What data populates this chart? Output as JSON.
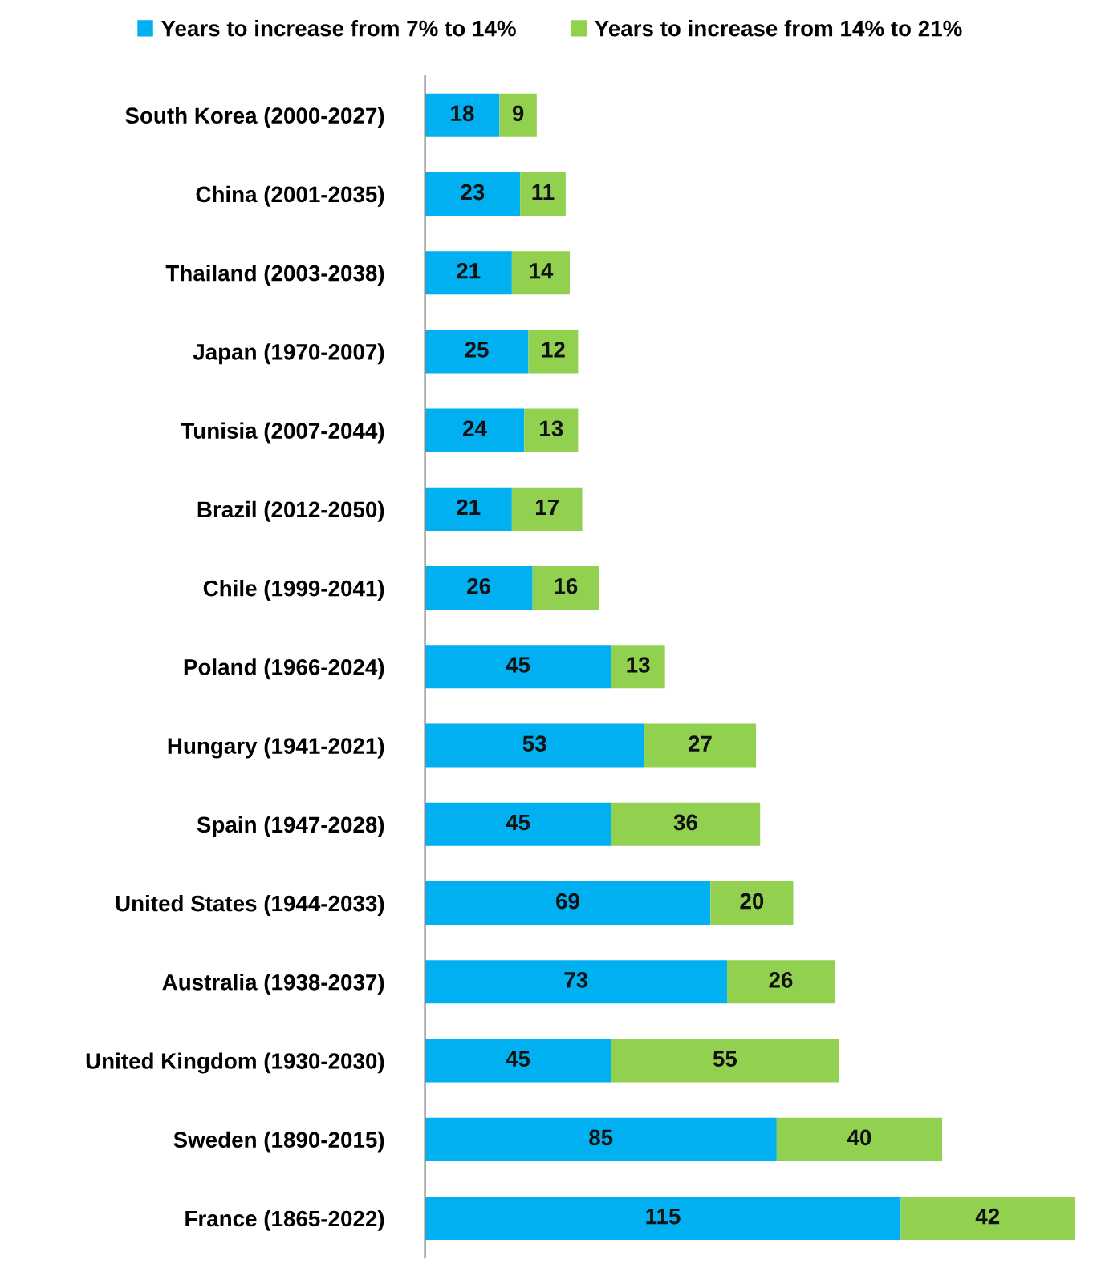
{
  "chart_data": {
    "type": "bar",
    "orientation": "horizontal",
    "stacked": true,
    "data_labels": true,
    "legend": "top",
    "grid": false,
    "categories": [
      "South Korea (2000-2027)",
      "China (2001-2035)",
      "Thailand (2003-2038)",
      "Japan (1970-2007)",
      "Tunisia (2007-2044)",
      "Brazil (2012-2050)",
      "Chile (1999-2041)",
      "Poland (1966-2024)",
      "Hungary (1941-2021)",
      "Spain (1947-2028)",
      "United States (1944-2033)",
      "Australia (1938-2037)",
      "United Kingdom (1930-2030)",
      "Sweden (1890-2015)",
      "France (1865-2022)"
    ],
    "series": [
      {
        "name": "Years to increase from 7% to 14%",
        "color": "#00b0f0",
        "values": [
          18,
          23,
          21,
          25,
          24,
          21,
          26,
          45,
          53,
          45,
          69,
          73,
          45,
          85,
          115
        ]
      },
      {
        "name": "Years to increase from 14% to 21%",
        "color": "#92d050",
        "values": [
          9,
          11,
          14,
          12,
          13,
          17,
          16,
          13,
          27,
          36,
          20,
          26,
          55,
          40,
          42
        ]
      }
    ]
  }
}
